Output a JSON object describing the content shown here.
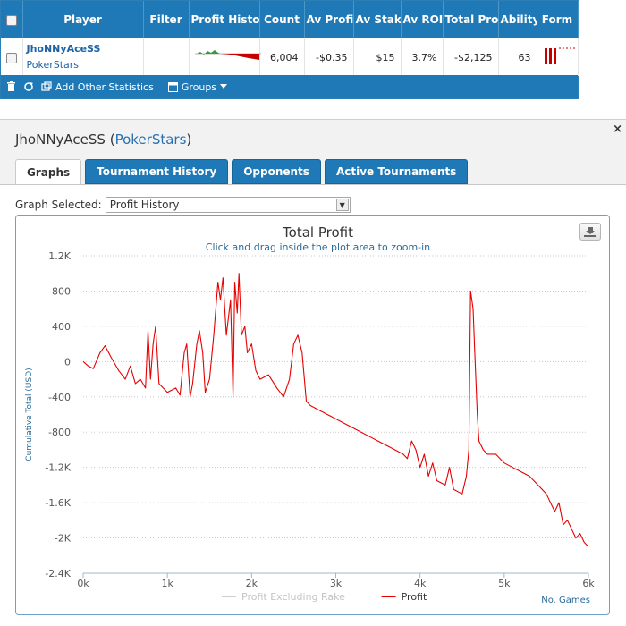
{
  "stats": {
    "columns": [
      "Player",
      "Filter",
      "Profit History",
      "Count",
      "Av Profit",
      "Av Stake",
      "Av ROI",
      "Total Profit",
      "Ability",
      "Form"
    ],
    "row": {
      "player_name": "JhoNNyAceSS",
      "player_site": "PokerStars",
      "filter": "",
      "count": "6,004",
      "av_profit": "-$0.35",
      "av_stake": "$15",
      "av_roi": "3.7%",
      "total_profit": "-$2,125",
      "ability": "63"
    },
    "toolbar": {
      "add_stats_label": "Add Other Statistics",
      "groups_label": "Groups"
    }
  },
  "panel": {
    "player_name": "JhoNNyAceSS",
    "site": "PokerStars",
    "close_glyph": "×",
    "tabs": [
      {
        "label": "Graphs",
        "active": true
      },
      {
        "label": "Tournament History",
        "active": false
      },
      {
        "label": "Opponents",
        "active": false
      },
      {
        "label": "Active Tournaments",
        "active": false
      }
    ],
    "graph_selected_label": "Graph Selected:",
    "graph_selected_value": "Profit History"
  },
  "chart_data": {
    "type": "line",
    "title": "Total Profit",
    "subtitle": "Click and drag inside the plot area to zoom-in",
    "xlabel": "No. Games",
    "ylabel": "Cumulative Total (USD)",
    "xlim": [
      0,
      6000
    ],
    "ylim": [
      -2400,
      1200
    ],
    "x_ticks": [
      "0k",
      "1k",
      "2k",
      "3k",
      "4k",
      "5k",
      "6k"
    ],
    "y_ticks": [
      "1.2K",
      "800",
      "400",
      "0",
      "-400",
      "-800",
      "-1.2K",
      "-1.6K",
      "-2K",
      "-2.4K"
    ],
    "grid": true,
    "legend_position": "bottom",
    "series": [
      {
        "name": "Profit Excluding Rake",
        "color": "#cfcfcf",
        "values": []
      },
      {
        "name": "Profit",
        "color": "#e60000",
        "points": [
          [
            0,
            0
          ],
          [
            60,
            -50
          ],
          [
            120,
            -80
          ],
          [
            200,
            100
          ],
          [
            260,
            180
          ],
          [
            330,
            50
          ],
          [
            420,
            -100
          ],
          [
            500,
            -200
          ],
          [
            560,
            -50
          ],
          [
            620,
            -250
          ],
          [
            680,
            -200
          ],
          [
            740,
            -300
          ],
          [
            770,
            350
          ],
          [
            800,
            -200
          ],
          [
            830,
            200
          ],
          [
            860,
            400
          ],
          [
            900,
            -250
          ],
          [
            950,
            -300
          ],
          [
            1000,
            -350
          ],
          [
            1100,
            -300
          ],
          [
            1150,
            -380
          ],
          [
            1200,
            100
          ],
          [
            1230,
            200
          ],
          [
            1270,
            -400
          ],
          [
            1300,
            -250
          ],
          [
            1350,
            200
          ],
          [
            1380,
            350
          ],
          [
            1420,
            100
          ],
          [
            1450,
            -350
          ],
          [
            1500,
            -200
          ],
          [
            1550,
            300
          ],
          [
            1600,
            900
          ],
          [
            1630,
            700
          ],
          [
            1660,
            950
          ],
          [
            1700,
            300
          ],
          [
            1750,
            700
          ],
          [
            1780,
            -400
          ],
          [
            1800,
            900
          ],
          [
            1830,
            550
          ],
          [
            1850,
            1000
          ],
          [
            1880,
            300
          ],
          [
            1920,
            400
          ],
          [
            1950,
            100
          ],
          [
            2000,
            200
          ],
          [
            2050,
            -100
          ],
          [
            2100,
            -200
          ],
          [
            2200,
            -150
          ],
          [
            2300,
            -300
          ],
          [
            2380,
            -400
          ],
          [
            2450,
            -200
          ],
          [
            2500,
            200
          ],
          [
            2550,
            300
          ],
          [
            2600,
            100
          ],
          [
            2650,
            -450
          ],
          [
            2700,
            -500
          ],
          [
            2800,
            -550
          ],
          [
            2900,
            -600
          ],
          [
            3000,
            -650
          ],
          [
            3100,
            -700
          ],
          [
            3200,
            -750
          ],
          [
            3300,
            -800
          ],
          [
            3400,
            -850
          ],
          [
            3500,
            -900
          ],
          [
            3600,
            -950
          ],
          [
            3700,
            -1000
          ],
          [
            3800,
            -1050
          ],
          [
            3850,
            -1100
          ],
          [
            3900,
            -900
          ],
          [
            3950,
            -1000
          ],
          [
            4000,
            -1200
          ],
          [
            4050,
            -1050
          ],
          [
            4100,
            -1300
          ],
          [
            4150,
            -1150
          ],
          [
            4200,
            -1350
          ],
          [
            4300,
            -1400
          ],
          [
            4350,
            -1200
          ],
          [
            4400,
            -1450
          ],
          [
            4500,
            -1500
          ],
          [
            4550,
            -1300
          ],
          [
            4580,
            -1000
          ],
          [
            4600,
            800
          ],
          [
            4630,
            600
          ],
          [
            4650,
            100
          ],
          [
            4680,
            -600
          ],
          [
            4700,
            -900
          ],
          [
            4750,
            -1000
          ],
          [
            4800,
            -1050
          ],
          [
            4900,
            -1050
          ],
          [
            5000,
            -1150
          ],
          [
            5100,
            -1200
          ],
          [
            5200,
            -1250
          ],
          [
            5300,
            -1300
          ],
          [
            5400,
            -1400
          ],
          [
            5500,
            -1500
          ],
          [
            5600,
            -1700
          ],
          [
            5650,
            -1600
          ],
          [
            5700,
            -1850
          ],
          [
            5750,
            -1800
          ],
          [
            5800,
            -1900
          ],
          [
            5850,
            -2000
          ],
          [
            5900,
            -1950
          ],
          [
            5950,
            -2050
          ],
          [
            6000,
            -2100
          ]
        ]
      }
    ]
  }
}
